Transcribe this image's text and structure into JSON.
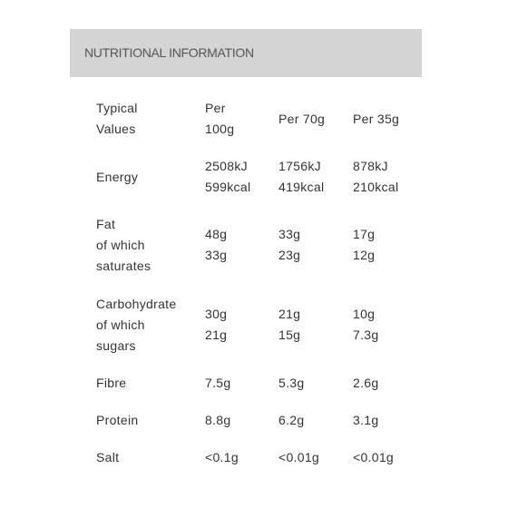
{
  "header": {
    "title": "NUTRITIONAL INFORMATION"
  },
  "table": {
    "columns": [
      [
        "Typical",
        "Values"
      ],
      [
        "Per",
        "100g"
      ],
      [
        "Per 70g"
      ],
      [
        "Per 35g"
      ]
    ],
    "rows": [
      [
        [
          "Energy"
        ],
        [
          "2508kJ",
          "599kcal"
        ],
        [
          "1756kJ",
          "419kcal"
        ],
        [
          "878kJ",
          "210kcal"
        ]
      ],
      [
        [
          "Fat",
          "of which",
          "saturates"
        ],
        [
          "48g",
          "33g"
        ],
        [
          "33g",
          "23g"
        ],
        [
          "17g",
          "12g"
        ]
      ],
      [
        [
          "Carbohydrate",
          "of which",
          "sugars"
        ],
        [
          "30g",
          "21g"
        ],
        [
          "21g",
          "15g"
        ],
        [
          "10g",
          "7.3g"
        ]
      ],
      [
        [
          "Fibre"
        ],
        [
          "7.5g"
        ],
        [
          "5.3g"
        ],
        [
          "2.6g"
        ]
      ],
      [
        [
          "Protein"
        ],
        [
          "8.8g"
        ],
        [
          "6.2g"
        ],
        [
          "3.1g"
        ]
      ],
      [
        [
          "Salt"
        ],
        [
          "<0.1g"
        ],
        [
          "<0.01g"
        ],
        [
          "<0.01g"
        ]
      ]
    ]
  }
}
